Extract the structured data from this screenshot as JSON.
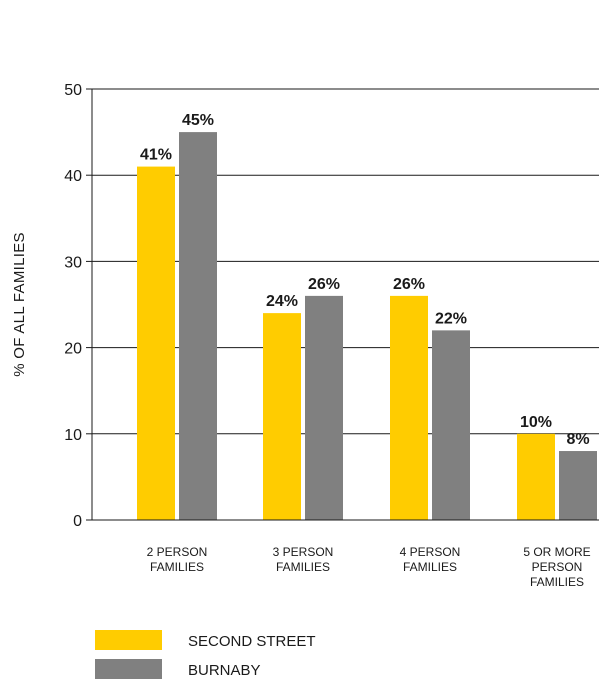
{
  "chart_data": {
    "type": "bar",
    "categories": [
      [
        "2 PERSON",
        "FAMILIES"
      ],
      [
        "3 PERSON",
        "FAMILIES"
      ],
      [
        "4 PERSON",
        "FAMILIES"
      ],
      [
        "5 OR MORE",
        "PERSON",
        "FAMILIES"
      ]
    ],
    "series": [
      {
        "name": "SECOND STREET",
        "values": [
          41,
          24,
          26,
          10
        ],
        "labels": [
          "41%",
          "24%",
          "26%",
          "10%"
        ],
        "color": "#FFCC00"
      },
      {
        "name": "BURNABY",
        "values": [
          45,
          26,
          22,
          8
        ],
        "labels": [
          "45%",
          "26%",
          "22%",
          "8%"
        ],
        "color": "#808080"
      }
    ],
    "ylabel": "% OF ALL FAMILIES",
    "ylim": [
      0,
      50
    ],
    "yticks": [
      0,
      10,
      20,
      30,
      40,
      50
    ],
    "grid": true,
    "legend_position": "bottom-left"
  }
}
